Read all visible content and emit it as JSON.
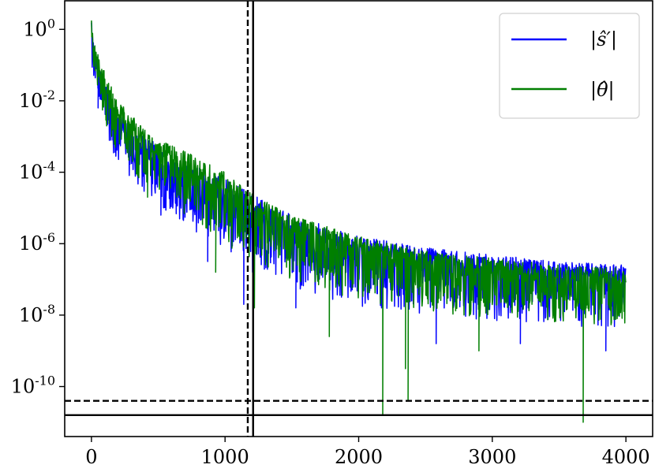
{
  "chart_data": {
    "type": "line",
    "title": "",
    "xlabel": "",
    "ylabel": "",
    "xlim": [
      -200,
      4200
    ],
    "ylim_log10": [
      -11.4,
      0.8
    ],
    "yscale": "log",
    "grid": false,
    "legend_placement": "top-right",
    "x_ticks": [
      {
        "value": 0,
        "label": "0"
      },
      {
        "value": 1000,
        "label": "1000"
      },
      {
        "value": 2000,
        "label": "2000"
      },
      {
        "value": 3000,
        "label": "3000"
      },
      {
        "value": 4000,
        "label": "4000"
      }
    ],
    "y_ticks": [
      {
        "exp": 0,
        "base": "10",
        "power": "0"
      },
      {
        "exp": -2,
        "base": "10",
        "power": "-2"
      },
      {
        "exp": -4,
        "base": "10",
        "power": "-4"
      },
      {
        "exp": -6,
        "base": "10",
        "power": "-6"
      },
      {
        "exp": -8,
        "base": "10",
        "power": "-8"
      },
      {
        "exp": -10,
        "base": "10",
        "power": "-10"
      }
    ],
    "series": [
      {
        "name": "|ŝ′|",
        "color": "#0000ff",
        "x_range": [
          0,
          4000
        ],
        "upper_envelope_log10": [
          [
            0,
            0.1
          ],
          [
            20,
            -0.5
          ],
          [
            100,
            -1.5
          ],
          [
            200,
            -2.3
          ],
          [
            400,
            -3.0
          ],
          [
            700,
            -3.7
          ],
          [
            1000,
            -4.2
          ],
          [
            1200,
            -4.6
          ],
          [
            1500,
            -5.2
          ],
          [
            2000,
            -5.8
          ],
          [
            2500,
            -6.1
          ],
          [
            3000,
            -6.3
          ],
          [
            3500,
            -6.5
          ],
          [
            4000,
            -6.6
          ]
        ],
        "typical_log10": [
          [
            0,
            0.2
          ],
          [
            20,
            -0.8
          ],
          [
            100,
            -1.9
          ],
          [
            200,
            -2.7
          ],
          [
            400,
            -3.5
          ],
          [
            700,
            -4.2
          ],
          [
            1000,
            -4.8
          ],
          [
            1200,
            -5.3
          ],
          [
            1500,
            -5.8
          ],
          [
            2000,
            -6.3
          ],
          [
            2500,
            -6.6
          ],
          [
            3000,
            -6.8
          ],
          [
            3500,
            -6.9
          ],
          [
            4000,
            -7.0
          ]
        ],
        "lower_envelope_log10": [
          [
            0,
            -1.0
          ],
          [
            100,
            -2.8
          ],
          [
            200,
            -3.8
          ],
          [
            400,
            -4.6
          ],
          [
            700,
            -5.5
          ],
          [
            1000,
            -6.2
          ],
          [
            1200,
            -6.8
          ],
          [
            1500,
            -7.2
          ],
          [
            2000,
            -7.8
          ],
          [
            2500,
            -8.0
          ],
          [
            3000,
            -8.2
          ],
          [
            3500,
            -8.3
          ],
          [
            4000,
            -8.4
          ]
        ],
        "deep_dips": [
          [
            50,
            -2.2
          ],
          [
            160,
            -3.1
          ],
          [
            520,
            -5.2
          ],
          [
            870,
            -6.5
          ],
          [
            1140,
            -7.7
          ],
          [
            1530,
            -7.8
          ],
          [
            2580,
            -8.8
          ],
          [
            3210,
            -8.8
          ],
          [
            3850,
            -9.0
          ]
        ]
      },
      {
        "name": "|θ̂|",
        "color": "#007f00",
        "x_range": [
          0,
          4000
        ],
        "upper_envelope_log10": [
          [
            0,
            0.3
          ],
          [
            20,
            -0.4
          ],
          [
            100,
            -1.2
          ],
          [
            200,
            -2.0
          ],
          [
            400,
            -2.8
          ],
          [
            700,
            -3.4
          ],
          [
            1000,
            -4.0
          ],
          [
            1200,
            -4.6
          ],
          [
            1500,
            -5.2
          ],
          [
            2000,
            -5.8
          ],
          [
            2500,
            -6.2
          ],
          [
            3000,
            -6.4
          ],
          [
            3500,
            -6.6
          ],
          [
            4000,
            -6.7
          ]
        ],
        "typical_log10": [
          [
            0,
            0.2
          ],
          [
            20,
            -0.7
          ],
          [
            100,
            -1.7
          ],
          [
            200,
            -2.5
          ],
          [
            400,
            -3.3
          ],
          [
            700,
            -4.0
          ],
          [
            1000,
            -4.6
          ],
          [
            1200,
            -5.1
          ],
          [
            1500,
            -5.6
          ],
          [
            2000,
            -6.2
          ],
          [
            2500,
            -6.6
          ],
          [
            3000,
            -6.8
          ],
          [
            3500,
            -7.0
          ],
          [
            4000,
            -7.1
          ]
        ],
        "lower_envelope_log10": [
          [
            0,
            -0.9
          ],
          [
            100,
            -2.6
          ],
          [
            200,
            -3.5
          ],
          [
            400,
            -4.4
          ],
          [
            700,
            -5.2
          ],
          [
            1000,
            -6.0
          ],
          [
            1200,
            -6.5
          ],
          [
            1500,
            -7.0
          ],
          [
            2000,
            -7.6
          ],
          [
            2500,
            -7.9
          ],
          [
            3000,
            -8.1
          ],
          [
            3500,
            -8.2
          ],
          [
            4000,
            -8.3
          ]
        ],
        "deep_dips": [
          [
            180,
            -3.3
          ],
          [
            420,
            -4.7
          ],
          [
            930,
            -6.8
          ],
          [
            1220,
            -7.8
          ],
          [
            1780,
            -8.6
          ],
          [
            2180,
            -10.8
          ],
          [
            2350,
            -9.5
          ],
          [
            2370,
            -10.4
          ],
          [
            2900,
            -9.0
          ],
          [
            3680,
            -11.0
          ]
        ]
      }
    ],
    "reference_lines": [
      {
        "orientation": "vertical",
        "x": 1170,
        "style": "dashed",
        "color": "#000000"
      },
      {
        "orientation": "vertical",
        "x": 1210,
        "style": "solid",
        "color": "#000000"
      },
      {
        "orientation": "horizontal",
        "y_log10": -10.4,
        "style": "dashed",
        "color": "#000000"
      },
      {
        "orientation": "horizontal",
        "y_log10": -10.8,
        "style": "solid",
        "color": "#000000"
      }
    ],
    "legend": {
      "placement": "top-right",
      "entries": [
        {
          "label": "|ŝ′|",
          "color": "#0000ff"
        },
        {
          "label": "|θ̂|",
          "color": "#007f00"
        }
      ]
    }
  }
}
